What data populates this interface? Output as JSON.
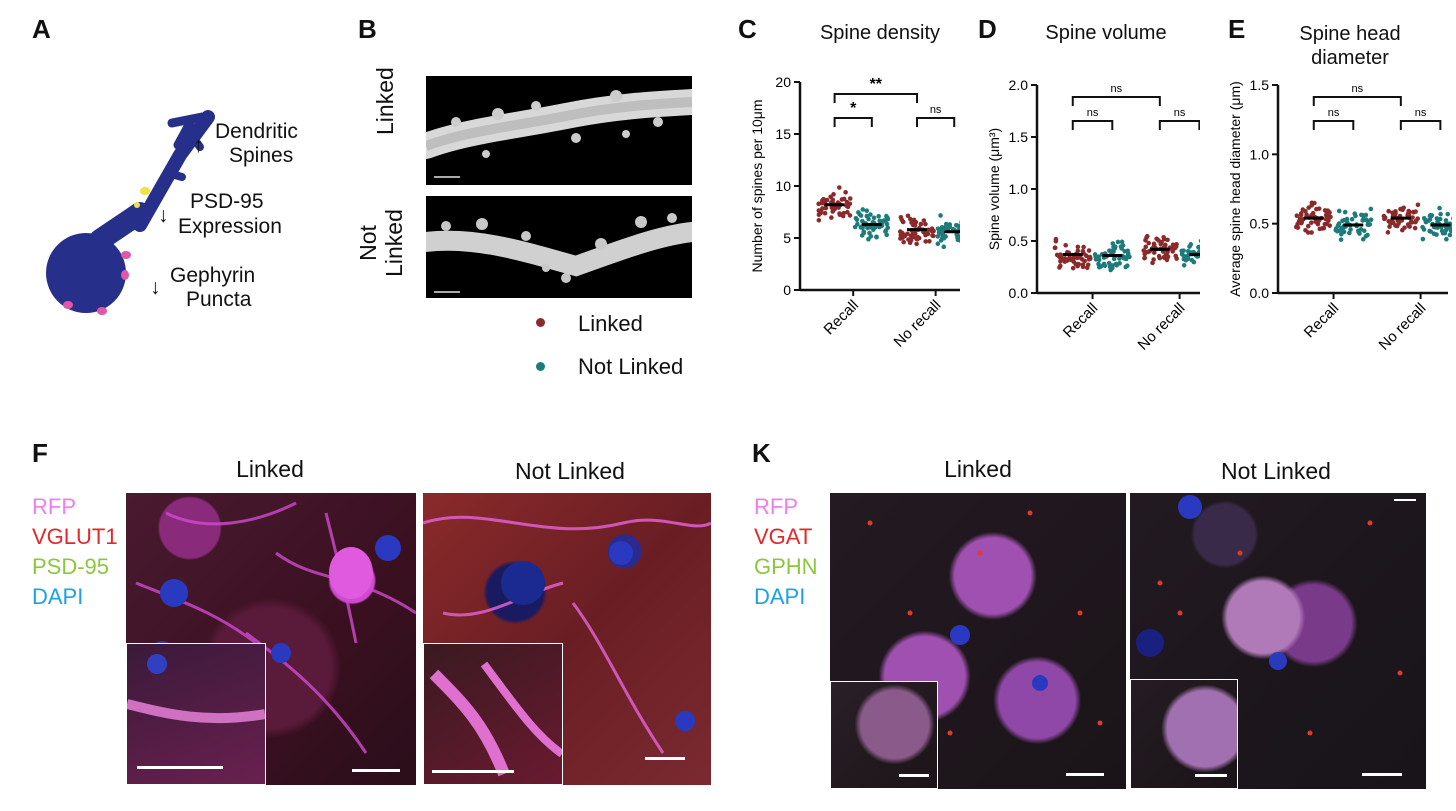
{
  "panels": {
    "A": {
      "letter": "A",
      "labels": [
        {
          "arrow": "↑",
          "text1": "Dendritic",
          "text2": "Spines"
        },
        {
          "arrow": "↓",
          "text1": "PSD-95",
          "text2": "Expression"
        },
        {
          "arrow": "↓",
          "text1": "Gephyrin",
          "text2": "Puncta"
        }
      ]
    },
    "B": {
      "letter": "B",
      "row_labels": [
        "Linked",
        "Not Linked"
      ],
      "legend": [
        {
          "label": "Linked",
          "color": "#8b2a2a"
        },
        {
          "label": "Not Linked",
          "color": "#1e7b7b"
        }
      ]
    },
    "C": {
      "letter": "C"
    },
    "D": {
      "letter": "D"
    },
    "E": {
      "letter": "E"
    },
    "F": {
      "letter": "F",
      "titles": [
        "Linked",
        "Not Linked"
      ],
      "channels": [
        {
          "name": "RFP",
          "color": "#f07cf0"
        },
        {
          "name": "VGLUT1",
          "color": "#e02a2a"
        },
        {
          "name": "PSD-95",
          "color": "#8cc63f"
        },
        {
          "name": "DAPI",
          "color": "#1ea0e6"
        }
      ]
    },
    "K": {
      "letter": "K",
      "titles": [
        "Linked",
        "Not Linked"
      ],
      "channels": [
        {
          "name": "RFP",
          "color": "#f07cf0"
        },
        {
          "name": "VGAT",
          "color": "#e02a2a"
        },
        {
          "name": "GPHN",
          "color": "#8cc63f"
        },
        {
          "name": "DAPI",
          "color": "#1ea0e6"
        }
      ]
    }
  },
  "chart_data": [
    {
      "type": "scatter",
      "title": "Spine density",
      "ylabel": "Number of spines per 10μm",
      "categories": [
        "Recall",
        "No recall"
      ],
      "ylim": [
        0,
        20
      ],
      "yticks": [
        "0",
        "5",
        "10",
        "15",
        "20"
      ],
      "series": [
        {
          "name": "Linked",
          "color": "#8b2a2a",
          "means": [
            8.2,
            5.8
          ]
        },
        {
          "name": "Not Linked",
          "color": "#1e7b7b",
          "means": [
            6.3,
            5.6
          ]
        }
      ],
      "comparisons": [
        {
          "label": "*",
          "from": "Recall/Linked",
          "to": "Recall/Not Linked"
        },
        {
          "label": "**",
          "from": "Recall/Linked",
          "to": "No recall/Linked"
        },
        {
          "label": "ns",
          "from": "No recall/Linked",
          "to": "No recall/Not Linked"
        }
      ]
    },
    {
      "type": "scatter",
      "title": "Spine volume",
      "ylabel": "Spine volume (μm³)",
      "categories": [
        "Recall",
        "No recall"
      ],
      "ylim": [
        0,
        2.0
      ],
      "yticks": [
        "0.0",
        "0.5",
        "1.0",
        "1.5",
        "2.0"
      ],
      "series": [
        {
          "name": "Linked",
          "color": "#8b2a2a",
          "means": [
            0.37,
            0.42
          ]
        },
        {
          "name": "Not Linked",
          "color": "#1e7b7b",
          "means": [
            0.36,
            0.37
          ]
        }
      ],
      "comparisons": [
        {
          "label": "ns",
          "from": "Recall/Linked",
          "to": "Recall/Not Linked"
        },
        {
          "label": "ns",
          "from": "Recall/Linked",
          "to": "No recall/Linked"
        },
        {
          "label": "ns",
          "from": "No recall/Linked",
          "to": "No recall/Not Linked"
        }
      ]
    },
    {
      "type": "scatter",
      "title": "Spine head diameter",
      "ylabel": "Average spine head diameter (μm)",
      "categories": [
        "Recall",
        "No recall"
      ],
      "ylim": [
        0,
        1.5
      ],
      "yticks": [
        "0.0",
        "0.5",
        "1.0",
        "1.5"
      ],
      "series": [
        {
          "name": "Linked",
          "color": "#8b2a2a",
          "means": [
            0.54,
            0.54
          ]
        },
        {
          "name": "Not Linked",
          "color": "#1e7b7b",
          "means": [
            0.49,
            0.49
          ]
        }
      ],
      "comparisons": [
        {
          "label": "ns",
          "from": "Recall/Linked",
          "to": "Recall/Not Linked"
        },
        {
          "label": "ns",
          "from": "Recall/Linked",
          "to": "No recall/Linked"
        },
        {
          "label": "ns",
          "from": "No recall/Linked",
          "to": "No recall/Not Linked"
        }
      ]
    }
  ]
}
